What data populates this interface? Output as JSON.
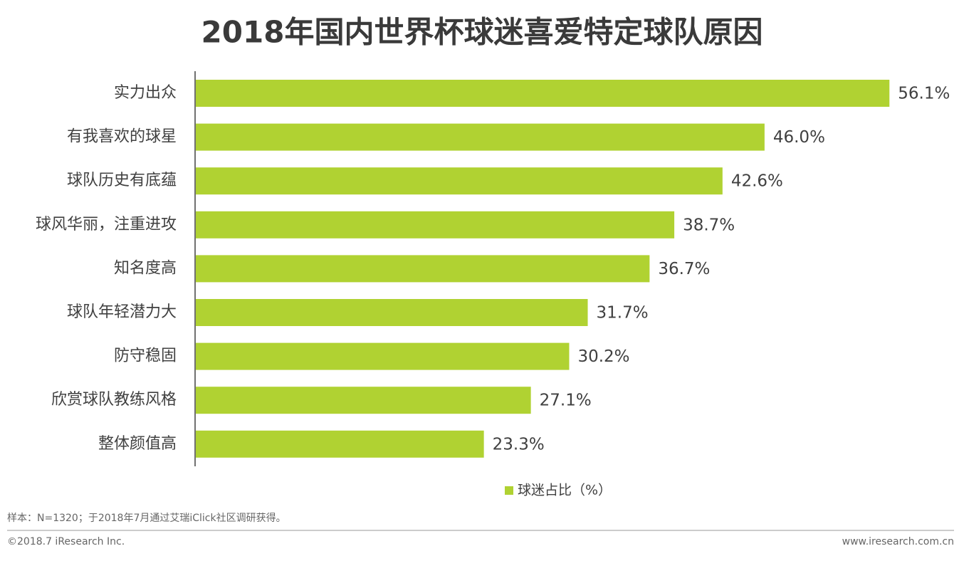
{
  "chart_data": {
    "type": "hbar",
    "title": "2018年国内世界杯球迷喜爱特定球队原因",
    "categories": [
      "实力出众",
      "有我喜欢的球星",
      "球队历史有底蕴",
      "球风华丽，注重进攻",
      "知名度高",
      "球队年轻潜力大",
      "防守稳固",
      "欣赏球队教练风格",
      "整体颜值高"
    ],
    "series": [
      {
        "name": "球迷占比（%）",
        "color": "#b0d232",
        "values": [
          56.1,
          46.0,
          42.6,
          38.7,
          36.7,
          31.7,
          30.2,
          27.1,
          23.3
        ],
        "value_labels": [
          "56.1%",
          "46.0%",
          "42.6%",
          "38.7%",
          "36.7%",
          "31.7%",
          "30.2%",
          "27.1%",
          "23.3%"
        ]
      }
    ],
    "xlim": [
      0,
      60
    ]
  },
  "footer": {
    "note": "样本：N=1320；于2018年7月通过艾瑞iClick社区调研获得。",
    "copyright": "©2018.7 iResearch Inc.",
    "url": "www.iresearch.com.cn"
  }
}
